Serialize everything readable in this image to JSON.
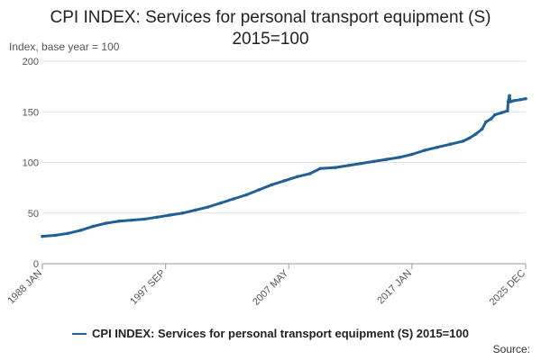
{
  "chart_data": {
    "type": "line",
    "title_line1": "CPI INDEX: Services for personal transport equipment (S)",
    "title_line2": "2015=100",
    "ylabel": "Index, base year = 100",
    "ylim": [
      0,
      200
    ],
    "yticks": [
      0,
      50,
      100,
      150,
      200
    ],
    "xrange": [
      1988.0,
      2025.92
    ],
    "xticks": [
      {
        "label": "1988 JAN",
        "value": 1988.0
      },
      {
        "label": "1997 SEP",
        "value": 1997.67
      },
      {
        "label": "2007 MAY",
        "value": 2007.33
      },
      {
        "label": "2017 JAN",
        "value": 2017.0
      },
      {
        "label": "2025 DEC",
        "value": 2025.92
      }
    ],
    "grid": true,
    "series": [
      {
        "name": "CPI INDEX: Services for personal transport equipment (S) 2015=100",
        "color": "#206095",
        "points": [
          [
            1988.0,
            27
          ],
          [
            1989.0,
            28
          ],
          [
            1990.0,
            30
          ],
          [
            1991.0,
            33
          ],
          [
            1992.0,
            37
          ],
          [
            1993.0,
            40
          ],
          [
            1994.0,
            42
          ],
          [
            1995.0,
            43
          ],
          [
            1996.0,
            44
          ],
          [
            1997.0,
            46
          ],
          [
            1998.0,
            48
          ],
          [
            1999.0,
            50
          ],
          [
            2000.0,
            53
          ],
          [
            2001.0,
            56
          ],
          [
            2002.0,
            60
          ],
          [
            2003.0,
            64
          ],
          [
            2004.0,
            68
          ],
          [
            2005.0,
            73
          ],
          [
            2006.0,
            78
          ],
          [
            2007.0,
            82
          ],
          [
            2008.0,
            86
          ],
          [
            2009.0,
            89
          ],
          [
            2009.8,
            94
          ],
          [
            2011.0,
            95
          ],
          [
            2012.0,
            97
          ],
          [
            2013.0,
            99
          ],
          [
            2014.0,
            101
          ],
          [
            2015.0,
            103
          ],
          [
            2016.0,
            105
          ],
          [
            2017.0,
            108
          ],
          [
            2018.0,
            112
          ],
          [
            2019.0,
            115
          ],
          [
            2020.0,
            118
          ],
          [
            2021.0,
            121
          ],
          [
            2021.5,
            124
          ],
          [
            2022.0,
            128
          ],
          [
            2022.5,
            133
          ],
          [
            2022.8,
            140
          ],
          [
            2023.2,
            143
          ],
          [
            2023.5,
            147
          ],
          [
            2024.0,
            149
          ],
          [
            2024.5,
            151
          ],
          [
            2024.55,
            160
          ],
          [
            2024.65,
            166
          ],
          [
            2024.72,
            160
          ],
          [
            2025.0,
            161
          ],
          [
            2025.5,
            162
          ],
          [
            2025.92,
            163
          ]
        ]
      }
    ],
    "legend_position": "bottom"
  },
  "source_label": "Source:"
}
